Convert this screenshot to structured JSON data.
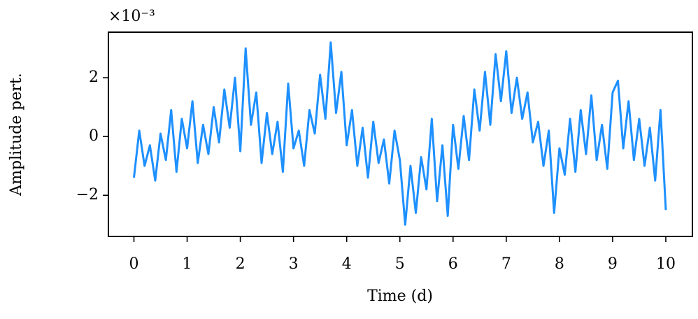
{
  "chart_data": {
    "type": "line",
    "y_offset_label": "×10⁻³",
    "xlabel": "Time (d)",
    "ylabel": "Amplitude pert.",
    "x": [
      0,
      0.1,
      0.2,
      0.3,
      0.4,
      0.5,
      0.6,
      0.7,
      0.8,
      0.9,
      1,
      1.1,
      1.2,
      1.3,
      1.4,
      1.5,
      1.6,
      1.7,
      1.8,
      1.9,
      2,
      2.1,
      2.2,
      2.3,
      2.4,
      2.5,
      2.6,
      2.7,
      2.8,
      2.9,
      3,
      3.1,
      3.2,
      3.3,
      3.4,
      3.5,
      3.6,
      3.7,
      3.8,
      3.9,
      4,
      4.1,
      4.2,
      4.3,
      4.4,
      4.5,
      4.6,
      4.7,
      4.8,
      4.9,
      5,
      5.1,
      5.2,
      5.3,
      5.4,
      5.5,
      5.6,
      5.7,
      5.8,
      5.9,
      6,
      6.1,
      6.2,
      6.3,
      6.4,
      6.5,
      6.6,
      6.7,
      6.8,
      6.9,
      7,
      7.1,
      7.2,
      7.3,
      7.4,
      7.5,
      7.6,
      7.7,
      7.8,
      7.9,
      8,
      8.1,
      8.2,
      8.3,
      8.4,
      8.5,
      8.6,
      8.7,
      8.8,
      8.9,
      9,
      9.1,
      9.2,
      9.3,
      9.4,
      9.5,
      9.6,
      9.7,
      9.8,
      9.9,
      10
    ],
    "values": [
      -1.4,
      0.2,
      -1.0,
      -0.3,
      -1.5,
      0.1,
      -0.8,
      0.9,
      -1.2,
      0.6,
      -0.4,
      1.2,
      -0.9,
      0.4,
      -0.6,
      1.0,
      -0.2,
      1.6,
      0.3,
      2.0,
      -0.5,
      3.0,
      0.4,
      1.5,
      -0.9,
      0.8,
      -0.6,
      0.5,
      -1.2,
      1.8,
      -0.4,
      0.2,
      -1.0,
      0.9,
      0.1,
      2.1,
      0.6,
      3.2,
      0.8,
      2.2,
      -0.3,
      0.9,
      -1.0,
      0.3,
      -1.4,
      0.5,
      -0.9,
      -0.1,
      -1.6,
      0.2,
      -0.8,
      -3.0,
      -1.0,
      -2.6,
      -0.7,
      -1.8,
      0.6,
      -2.2,
      -0.3,
      -2.7,
      0.4,
      -1.1,
      0.7,
      -0.8,
      1.6,
      0.2,
      2.2,
      0.4,
      2.8,
      1.2,
      2.9,
      0.8,
      2.0,
      0.6,
      1.5,
      -0.2,
      0.5,
      -1.0,
      0.2,
      -2.6,
      -0.4,
      -1.3,
      0.6,
      -1.2,
      0.9,
      -0.6,
      1.4,
      -0.8,
      0.4,
      -1.1,
      1.5,
      1.9,
      -0.4,
      1.2,
      -0.8,
      0.6,
      -1.0,
      0.3,
      -1.5,
      0.9,
      -2.5
    ],
    "color": "#1e90ff",
    "xlim": [
      -0.48,
      10.5
    ],
    "xticks": [
      0,
      1,
      2,
      3,
      4,
      5,
      6,
      7,
      8,
      9,
      10
    ],
    "ylim": [
      -3.4,
      3.55
    ],
    "yticks": [
      {
        "value": -2,
        "label": "−2"
      },
      0,
      2
    ]
  }
}
